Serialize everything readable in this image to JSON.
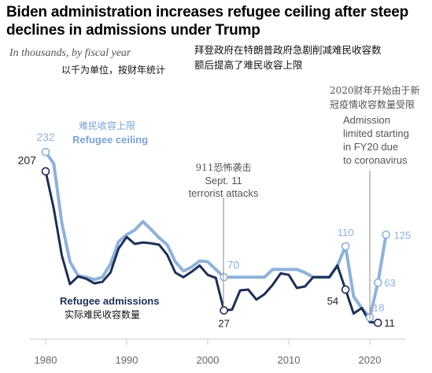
{
  "header": {
    "title": "Biden administration increases refugee ceiling after steep declines in admissions under Trump",
    "subtitle": "In thousands, by fiscal year",
    "subtitle_zh": "以千为单位，按财年统计",
    "title_zh": "拜登政府在特朗普政府急剧削减难民收容数额后提高了难民收容上限"
  },
  "chart_data": {
    "type": "line",
    "title": "Biden administration increases refugee ceiling after steep declines in admissions under Trump",
    "subtitle": "In thousands, by fiscal year",
    "xlabel": "",
    "ylabel": "",
    "xlim": [
      1978,
      2023
    ],
    "ylim": [
      0,
      240
    ],
    "x_ticks": [
      "1980",
      "1990",
      "2000",
      "2010",
      "2020"
    ],
    "x": [
      1980,
      1981,
      1982,
      1983,
      1984,
      1985,
      1986,
      1987,
      1988,
      1989,
      1990,
      1991,
      1992,
      1993,
      1994,
      1995,
      1996,
      1997,
      1998,
      1999,
      2000,
      2001,
      2002,
      2003,
      2004,
      2005,
      2006,
      2007,
      2008,
      2009,
      2010,
      2011,
      2012,
      2013,
      2014,
      2015,
      2016,
      2017,
      2018,
      2019,
      2020,
      2021,
      2022
    ],
    "series": [
      {
        "name": "Refugee ceiling",
        "name_zh": "难民收容上限",
        "color": "#8fb1d9",
        "values": [
          232,
          217,
          140,
          90,
          72,
          70,
          67,
          70,
          87,
          116,
          125,
          131,
          142,
          132,
          121,
          112,
          90,
          78,
          83,
          91,
          90,
          80,
          70,
          70,
          70,
          70,
          70,
          70,
          80,
          80,
          80,
          80,
          76,
          70,
          70,
          70,
          85,
          110,
          45,
          30,
          18,
          63,
          125
        ]
      },
      {
        "name": "Refugee admissions",
        "name_zh": "实际难民收容数量",
        "color": "#1f2f55",
        "values": [
          207,
          159,
          98,
          61,
          71,
          68,
          62,
          64,
          76,
          107,
          122,
          113,
          115,
          114,
          112,
          99,
          76,
          70,
          77,
          85,
          73,
          69,
          27,
          28,
          53,
          54,
          41,
          48,
          60,
          75,
          73,
          56,
          58,
          70,
          70,
          70,
          85,
          54,
          23,
          30,
          12,
          11,
          null
        ]
      }
    ],
    "data_labels": [
      "232",
      "207",
      "70",
      "27",
      "110",
      "54",
      "18",
      "11",
      "63",
      "125"
    ],
    "legend": "inline labels"
  },
  "annotations": {
    "ceiling_label_zh": "难民收容上限",
    "ceiling_label": "Refugee ceiling",
    "admissions_label": "Refugee admissions",
    "admissions_label_zh": "实际难民收容数量",
    "sept11_zh": "911恐怖袭击",
    "sept11_line1": "Sept. 11",
    "sept11_line2": "terrorist attacks",
    "covid_zh_line1": "2020财年开始由于新",
    "covid_zh_line2": "冠疫情收容数量受限",
    "covid_line1": "Admission",
    "covid_line2": "limited starting",
    "covid_line3": "in FY20 due",
    "covid_line4": "to coronavirus"
  },
  "colors": {
    "ceiling": "#8fb1d9",
    "admissions": "#1f2f55",
    "ceiling_text": "#7ba3d3",
    "annotation_text": "#555555"
  }
}
